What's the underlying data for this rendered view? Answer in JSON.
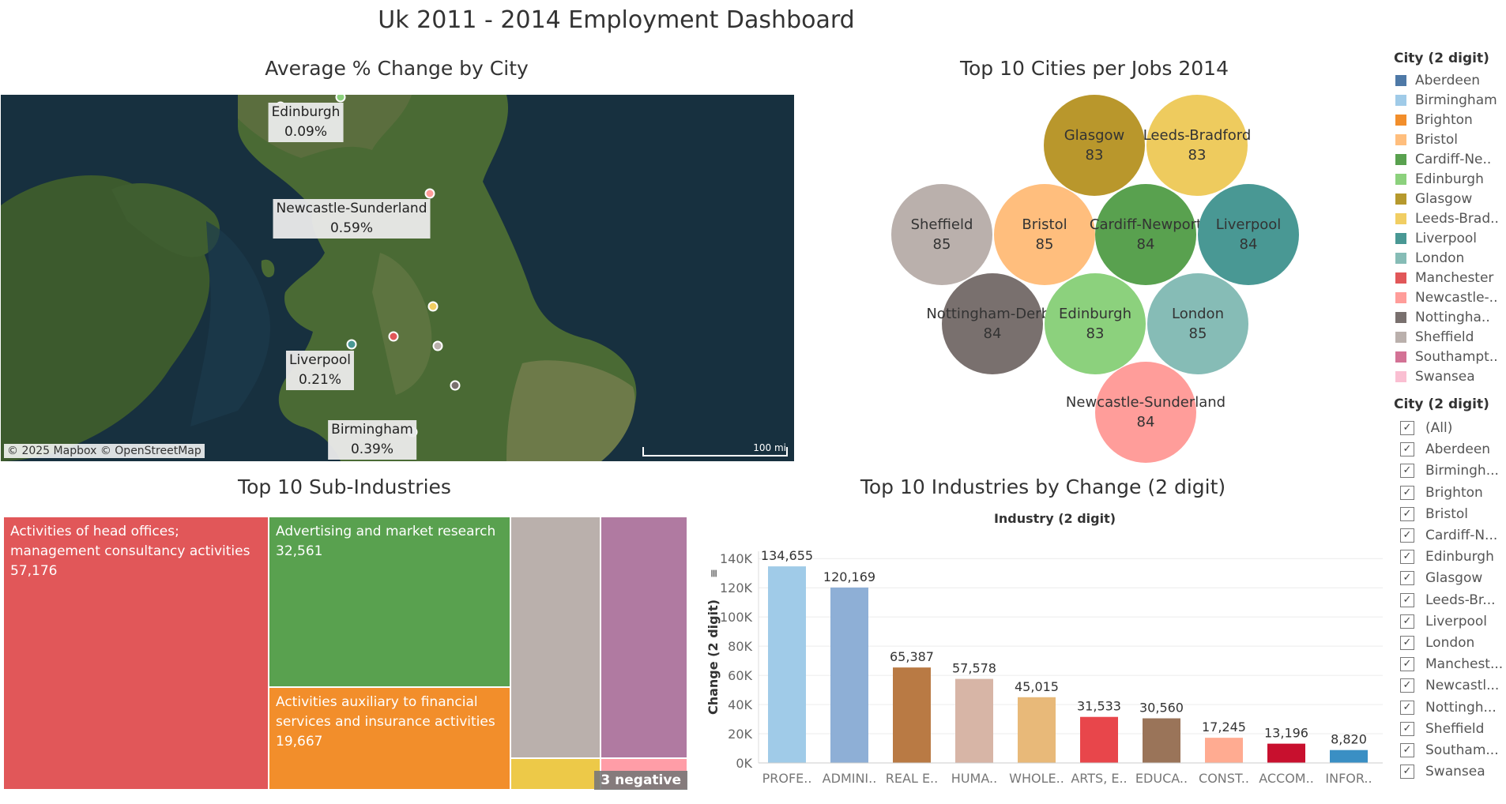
{
  "dashboard_title": "Uk 2011 - 2014 Employment Dashboard",
  "map": {
    "title": "Average % Change by City",
    "attribution": "© 2025 Mapbox © OpenStreetMap",
    "scale": "100 mi",
    "labels": [
      {
        "city": "Edinburgh",
        "value": "0.09%"
      },
      {
        "city": "Newcastle-Sunderland",
        "value": "0.59%"
      },
      {
        "city": "Liverpool",
        "value": "0.21%"
      },
      {
        "city": "Birmingham",
        "value": "0.39%"
      }
    ]
  },
  "bubbles": {
    "title": "Top 10 Cities per Jobs 2014",
    "items": [
      {
        "city": "Glasgow",
        "value": "83",
        "color": "#B9972C"
      },
      {
        "city": "Leeds-Bradford",
        "value": "83",
        "color": "#EECB5E"
      },
      {
        "city": "Sheffield",
        "value": "85",
        "color": "#BAB0AC"
      },
      {
        "city": "Bristol",
        "value": "85",
        "color": "#FFBE7D"
      },
      {
        "city": "Cardiff-Newport",
        "value": "84",
        "color": "#59A14F"
      },
      {
        "city": "Liverpool",
        "value": "84",
        "color": "#499894"
      },
      {
        "city": "Nottingham-Derby",
        "value": "84",
        "color": "#79706E"
      },
      {
        "city": "Edinburgh",
        "value": "83",
        "color": "#8CD17D"
      },
      {
        "city": "London",
        "value": "85",
        "color": "#86BCB6"
      },
      {
        "city": "Newcastle-Sunderland",
        "value": "84",
        "color": "#FF9D9A"
      }
    ]
  },
  "legend": {
    "title": "City (2 digit)",
    "items": [
      {
        "label": "Aberdeen",
        "color": "#4E79A7"
      },
      {
        "label": "Birmingham",
        "color": "#A0CBE8"
      },
      {
        "label": "Brighton",
        "color": "#F28E2B"
      },
      {
        "label": "Bristol",
        "color": "#FFBE7D"
      },
      {
        "label": "Cardiff-Ne..",
        "color": "#59A14F"
      },
      {
        "label": "Edinburgh",
        "color": "#8CD17D"
      },
      {
        "label": "Glasgow",
        "color": "#B6992D"
      },
      {
        "label": "Leeds-Brad..",
        "color": "#F1CE63"
      },
      {
        "label": "Liverpool",
        "color": "#499894"
      },
      {
        "label": "London",
        "color": "#86BCB6"
      },
      {
        "label": "Manchester",
        "color": "#E15759"
      },
      {
        "label": "Newcastle-..",
        "color": "#FF9D9A"
      },
      {
        "label": "Nottingha..",
        "color": "#79706E"
      },
      {
        "label": "Sheffield",
        "color": "#BAB0AC"
      },
      {
        "label": "Southampt..",
        "color": "#D37295"
      },
      {
        "label": "Swansea",
        "color": "#FABFD2"
      }
    ]
  },
  "filter": {
    "title": "City (2 digit)",
    "items": [
      "(All)",
      "Aberdeen",
      "Birmingh...",
      "Brighton",
      "Bristol",
      "Cardiff-N...",
      "Edinburgh",
      "Glasgow",
      "Leeds-Br...",
      "Liverpool",
      "London",
      "Manchest...",
      "Newcastl...",
      "Nottingh...",
      "Sheffield",
      "Southam...",
      "Swansea"
    ],
    "check": "✓"
  },
  "treemap": {
    "title": "Top 10 Sub-Industries",
    "cells": [
      {
        "label": "Activities of head offices; management consultancy activities",
        "value": "57,176",
        "color": "#E15759"
      },
      {
        "label": "Advertising and market research",
        "value": "32,561",
        "color": "#59A14F"
      },
      {
        "label": "Activities auxiliary to financial services and insurance activities",
        "value": "19,667",
        "color": "#F28E2B"
      },
      {
        "label": "",
        "value": "",
        "color": "#BAB0AC"
      },
      {
        "label": "",
        "value": "",
        "color": "#B07AA1"
      },
      {
        "label": "",
        "value": "",
        "color": "#EDC948"
      },
      {
        "label": "",
        "value": "",
        "color": "#FF9DA7"
      }
    ],
    "negative_badge": "3 negative"
  },
  "chart_data": {
    "type": "bar",
    "title": "Top 10 Industries by Change (2 digit)",
    "header": "Industry (2 digit)",
    "ylabel": "Change (2 digit)",
    "sort_icon": "sort-descending-icon",
    "ylim": [
      0,
      145000
    ],
    "yticks": [
      0,
      20000,
      40000,
      60000,
      80000,
      100000,
      120000,
      140000
    ],
    "ytick_labels": [
      "0K",
      "20K",
      "40K",
      "60K",
      "80K",
      "100K",
      "120K",
      "140K"
    ],
    "categories": [
      "PROFE..",
      "ADMINI..",
      "REAL E..",
      "HUMA..",
      "WHOLE..",
      "ARTS, E..",
      "EDUCA..",
      "CONST..",
      "ACCOM..",
      "INFOR.."
    ],
    "values": [
      134655,
      120169,
      65387,
      57578,
      45015,
      31533,
      30560,
      17245,
      13196,
      8820
    ],
    "value_labels": [
      "134,655",
      "120,169",
      "65,387",
      "57,578",
      "45,015",
      "31,533",
      "30,560",
      "17,245",
      "13,196",
      "8,820"
    ],
    "colors": [
      "#A0CBE8",
      "#8EAFD6",
      "#B97A44",
      "#D7B5A6",
      "#E8B979",
      "#E8464B",
      "#9A7459",
      "#FFAB91",
      "#C8102E",
      "#3A8FC4"
    ]
  }
}
